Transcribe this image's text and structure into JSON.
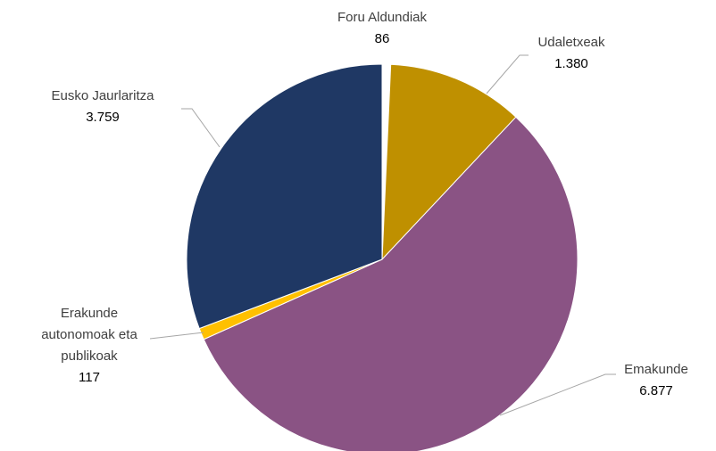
{
  "chart_data": {
    "type": "pie",
    "categories": [
      "Foru Aldundiak",
      "Udaletxeak",
      "Emakunde",
      "Erakunde autonomoak eta publikoak",
      "Eusko Jaurlaritza"
    ],
    "values": [
      86,
      1380,
      6877,
      117,
      3759
    ],
    "value_labels": [
      "86",
      "1.380",
      "6.877",
      "117",
      "3.759"
    ],
    "colors": [
      "#ffffff",
      "#bf9000",
      "#8a5384",
      "#ffc000",
      "#1f3864"
    ]
  }
}
